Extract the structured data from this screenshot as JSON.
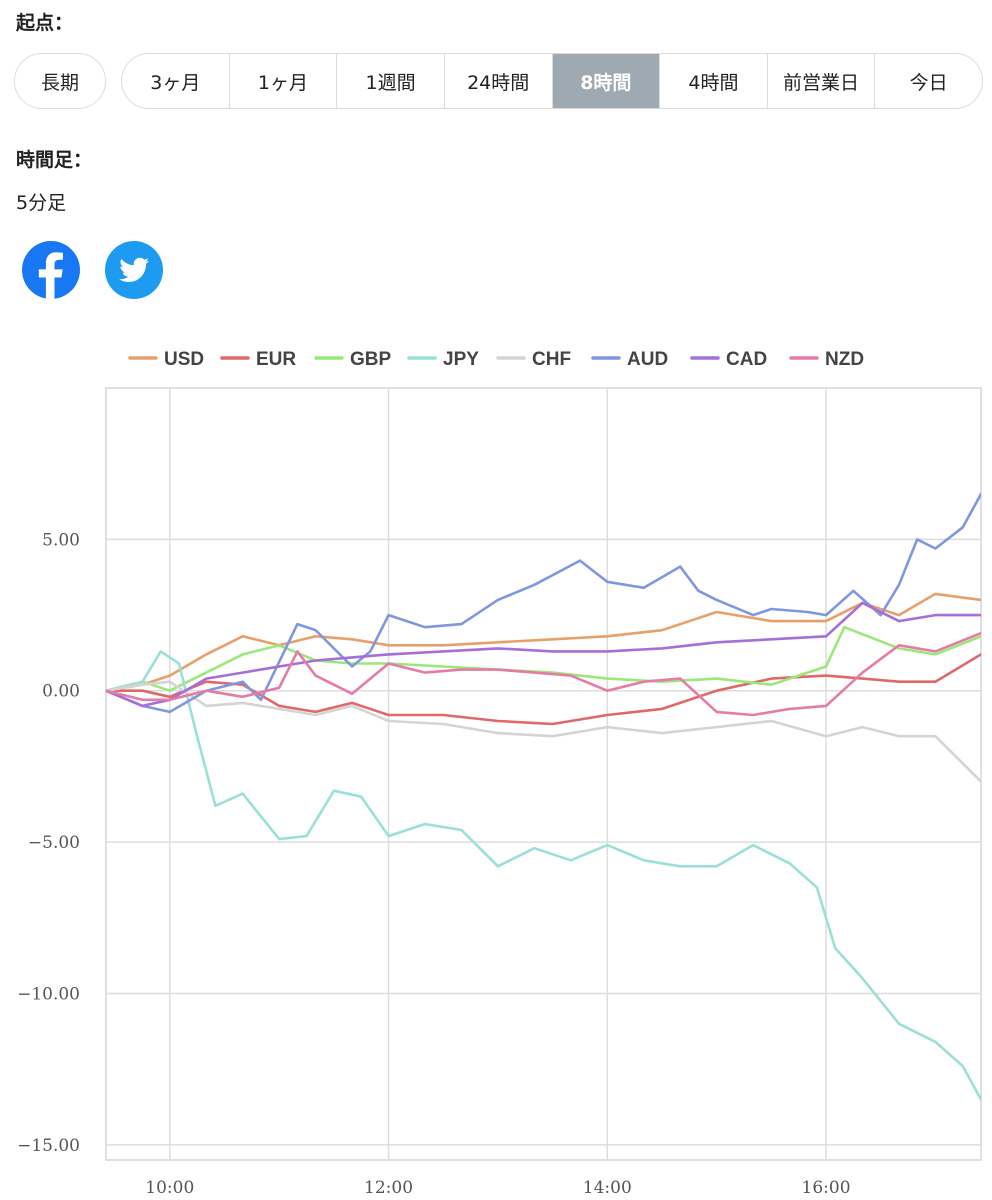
{
  "origin": {
    "label": "起点：",
    "long_term": "長期",
    "ranges": [
      "3ヶ月",
      "1ヶ月",
      "1週間",
      "24時間",
      "8時間",
      "4時間",
      "前営業日",
      "今日"
    ],
    "active_index": 4
  },
  "timeframe": {
    "label": "時間足：",
    "value": "5分足"
  },
  "social": {
    "facebook_icon": "facebook-icon",
    "twitter_icon": "twitter-icon"
  },
  "chart_data": {
    "type": "line",
    "title": "",
    "xlabel": "",
    "ylabel": "",
    "x_ticks": [
      "10:00",
      "12:00",
      "14:00",
      "16:00"
    ],
    "y_ticks": [
      "5.00",
      "0.00",
      "-5.00",
      "-10.00",
      "-15.00"
    ],
    "ylim": [
      -15.5,
      10.0
    ],
    "xlim": [
      "09:25",
      "17:25"
    ],
    "grid": true,
    "legend_position": "top",
    "series": [
      {
        "name": "USD",
        "color": "#e8a06b",
        "points": [
          [
            "09:25",
            0.0
          ],
          [
            "09:45",
            0.2
          ],
          [
            "10:00",
            0.5
          ],
          [
            "10:20",
            1.2
          ],
          [
            "10:40",
            1.8
          ],
          [
            "11:00",
            1.5
          ],
          [
            "11:20",
            1.8
          ],
          [
            "11:40",
            1.7
          ],
          [
            "12:00",
            1.5
          ],
          [
            "12:30",
            1.5
          ],
          [
            "13:00",
            1.6
          ],
          [
            "13:30",
            1.7
          ],
          [
            "14:00",
            1.8
          ],
          [
            "14:30",
            2.0
          ],
          [
            "15:00",
            2.6
          ],
          [
            "15:30",
            2.3
          ],
          [
            "16:00",
            2.3
          ],
          [
            "16:20",
            2.9
          ],
          [
            "16:40",
            2.5
          ],
          [
            "17:00",
            3.2
          ],
          [
            "17:25",
            3.0
          ]
        ]
      },
      {
        "name": "EUR",
        "color": "#e06868",
        "points": [
          [
            "09:25",
            0.0
          ],
          [
            "09:45",
            0.0
          ],
          [
            "10:00",
            -0.2
          ],
          [
            "10:20",
            0.3
          ],
          [
            "10:40",
            0.2
          ],
          [
            "11:00",
            -0.5
          ],
          [
            "11:20",
            -0.7
          ],
          [
            "11:40",
            -0.4
          ],
          [
            "12:00",
            -0.8
          ],
          [
            "12:30",
            -0.8
          ],
          [
            "13:00",
            -1.0
          ],
          [
            "13:30",
            -1.1
          ],
          [
            "14:00",
            -0.8
          ],
          [
            "14:30",
            -0.6
          ],
          [
            "15:00",
            0.0
          ],
          [
            "15:30",
            0.4
          ],
          [
            "16:00",
            0.5
          ],
          [
            "16:20",
            0.4
          ],
          [
            "16:40",
            0.3
          ],
          [
            "17:00",
            0.3
          ],
          [
            "17:25",
            1.2
          ]
        ]
      },
      {
        "name": "GBP",
        "color": "#9be87a",
        "points": [
          [
            "09:25",
            0.0
          ],
          [
            "09:45",
            0.3
          ],
          [
            "10:00",
            0.0
          ],
          [
            "10:20",
            0.6
          ],
          [
            "10:40",
            1.2
          ],
          [
            "11:00",
            1.5
          ],
          [
            "11:20",
            1.0
          ],
          [
            "11:40",
            0.9
          ],
          [
            "12:00",
            0.9
          ],
          [
            "12:30",
            0.8
          ],
          [
            "13:00",
            0.7
          ],
          [
            "13:30",
            0.6
          ],
          [
            "14:00",
            0.4
          ],
          [
            "14:30",
            0.3
          ],
          [
            "15:00",
            0.4
          ],
          [
            "15:30",
            0.2
          ],
          [
            "16:00",
            0.8
          ],
          [
            "16:10",
            2.1
          ],
          [
            "16:40",
            1.4
          ],
          [
            "17:00",
            1.2
          ],
          [
            "17:25",
            1.8
          ]
        ]
      },
      {
        "name": "JPY",
        "color": "#9ae0d8",
        "points": [
          [
            "09:25",
            0.0
          ],
          [
            "09:45",
            0.3
          ],
          [
            "09:55",
            1.3
          ],
          [
            "10:05",
            0.9
          ],
          [
            "10:15",
            -1.5
          ],
          [
            "10:25",
            -3.8
          ],
          [
            "10:40",
            -3.4
          ],
          [
            "11:00",
            -4.9
          ],
          [
            "11:15",
            -4.8
          ],
          [
            "11:30",
            -3.3
          ],
          [
            "11:45",
            -3.5
          ],
          [
            "12:00",
            -4.8
          ],
          [
            "12:20",
            -4.4
          ],
          [
            "12:40",
            -4.6
          ],
          [
            "13:00",
            -5.8
          ],
          [
            "13:20",
            -5.2
          ],
          [
            "13:40",
            -5.6
          ],
          [
            "14:00",
            -5.1
          ],
          [
            "14:20",
            -5.6
          ],
          [
            "14:40",
            -5.8
          ],
          [
            "15:00",
            -5.8
          ],
          [
            "15:20",
            -5.1
          ],
          [
            "15:40",
            -5.7
          ],
          [
            "15:55",
            -6.5
          ],
          [
            "16:05",
            -8.5
          ],
          [
            "16:20",
            -9.5
          ],
          [
            "16:40",
            -11.0
          ],
          [
            "17:00",
            -11.6
          ],
          [
            "17:15",
            -12.4
          ],
          [
            "17:25",
            -13.5
          ]
        ]
      },
      {
        "name": "CHF",
        "color": "#d4d4d4",
        "points": [
          [
            "09:25",
            0.0
          ],
          [
            "09:45",
            0.2
          ],
          [
            "10:00",
            0.3
          ],
          [
            "10:20",
            -0.5
          ],
          [
            "10:40",
            -0.4
          ],
          [
            "11:00",
            -0.6
          ],
          [
            "11:20",
            -0.8
          ],
          [
            "11:40",
            -0.5
          ],
          [
            "12:00",
            -1.0
          ],
          [
            "12:30",
            -1.1
          ],
          [
            "13:00",
            -1.4
          ],
          [
            "13:30",
            -1.5
          ],
          [
            "14:00",
            -1.2
          ],
          [
            "14:30",
            -1.4
          ],
          [
            "15:00",
            -1.2
          ],
          [
            "15:30",
            -1.0
          ],
          [
            "16:00",
            -1.5
          ],
          [
            "16:20",
            -1.2
          ],
          [
            "16:40",
            -1.5
          ],
          [
            "17:00",
            -1.5
          ],
          [
            "17:15",
            -2.4
          ],
          [
            "17:25",
            -3.0
          ]
        ]
      },
      {
        "name": "AUD",
        "color": "#7f97df",
        "points": [
          [
            "09:25",
            0.0
          ],
          [
            "09:45",
            -0.5
          ],
          [
            "10:00",
            -0.7
          ],
          [
            "10:20",
            0.0
          ],
          [
            "10:40",
            0.3
          ],
          [
            "10:50",
            -0.3
          ],
          [
            "11:10",
            2.2
          ],
          [
            "11:20",
            2.0
          ],
          [
            "11:40",
            0.8
          ],
          [
            "11:50",
            1.3
          ],
          [
            "12:00",
            2.5
          ],
          [
            "12:20",
            2.1
          ],
          [
            "12:40",
            2.2
          ],
          [
            "13:00",
            3.0
          ],
          [
            "13:20",
            3.5
          ],
          [
            "13:45",
            4.3
          ],
          [
            "14:00",
            3.6
          ],
          [
            "14:20",
            3.4
          ],
          [
            "14:40",
            4.1
          ],
          [
            "14:50",
            3.3
          ],
          [
            "15:00",
            3.0
          ],
          [
            "15:20",
            2.5
          ],
          [
            "15:30",
            2.7
          ],
          [
            "15:50",
            2.6
          ],
          [
            "16:00",
            2.5
          ],
          [
            "16:15",
            3.3
          ],
          [
            "16:30",
            2.5
          ],
          [
            "16:40",
            3.5
          ],
          [
            "16:50",
            5.0
          ],
          [
            "17:00",
            4.7
          ],
          [
            "17:15",
            5.4
          ],
          [
            "17:25",
            6.5
          ]
        ]
      },
      {
        "name": "CAD",
        "color": "#a56ed9",
        "points": [
          [
            "09:25",
            0.0
          ],
          [
            "09:45",
            -0.5
          ],
          [
            "10:00",
            -0.3
          ],
          [
            "10:20",
            0.4
          ],
          [
            "10:40",
            0.6
          ],
          [
            "11:00",
            0.8
          ],
          [
            "11:20",
            1.0
          ],
          [
            "11:40",
            1.1
          ],
          [
            "12:00",
            1.2
          ],
          [
            "12:30",
            1.3
          ],
          [
            "13:00",
            1.4
          ],
          [
            "13:30",
            1.3
          ],
          [
            "14:00",
            1.3
          ],
          [
            "14:30",
            1.4
          ],
          [
            "15:00",
            1.6
          ],
          [
            "15:30",
            1.7
          ],
          [
            "16:00",
            1.8
          ],
          [
            "16:20",
            2.9
          ],
          [
            "16:40",
            2.3
          ],
          [
            "17:00",
            2.5
          ],
          [
            "17:25",
            2.5
          ]
        ]
      },
      {
        "name": "NZD",
        "color": "#e57ba6",
        "points": [
          [
            "09:25",
            0.0
          ],
          [
            "09:45",
            -0.3
          ],
          [
            "10:00",
            -0.3
          ],
          [
            "10:20",
            0.0
          ],
          [
            "10:40",
            -0.2
          ],
          [
            "11:00",
            0.1
          ],
          [
            "11:10",
            1.3
          ],
          [
            "11:20",
            0.5
          ],
          [
            "11:40",
            -0.1
          ],
          [
            "12:00",
            0.9
          ],
          [
            "12:20",
            0.6
          ],
          [
            "12:40",
            0.7
          ],
          [
            "13:00",
            0.7
          ],
          [
            "13:20",
            0.6
          ],
          [
            "13:40",
            0.5
          ],
          [
            "14:00",
            0.0
          ],
          [
            "14:20",
            0.3
          ],
          [
            "14:40",
            0.4
          ],
          [
            "15:00",
            -0.7
          ],
          [
            "15:20",
            -0.8
          ],
          [
            "15:40",
            -0.6
          ],
          [
            "16:00",
            -0.5
          ],
          [
            "16:20",
            0.6
          ],
          [
            "16:40",
            1.5
          ],
          [
            "17:00",
            1.3
          ],
          [
            "17:25",
            1.9
          ]
        ]
      }
    ]
  }
}
